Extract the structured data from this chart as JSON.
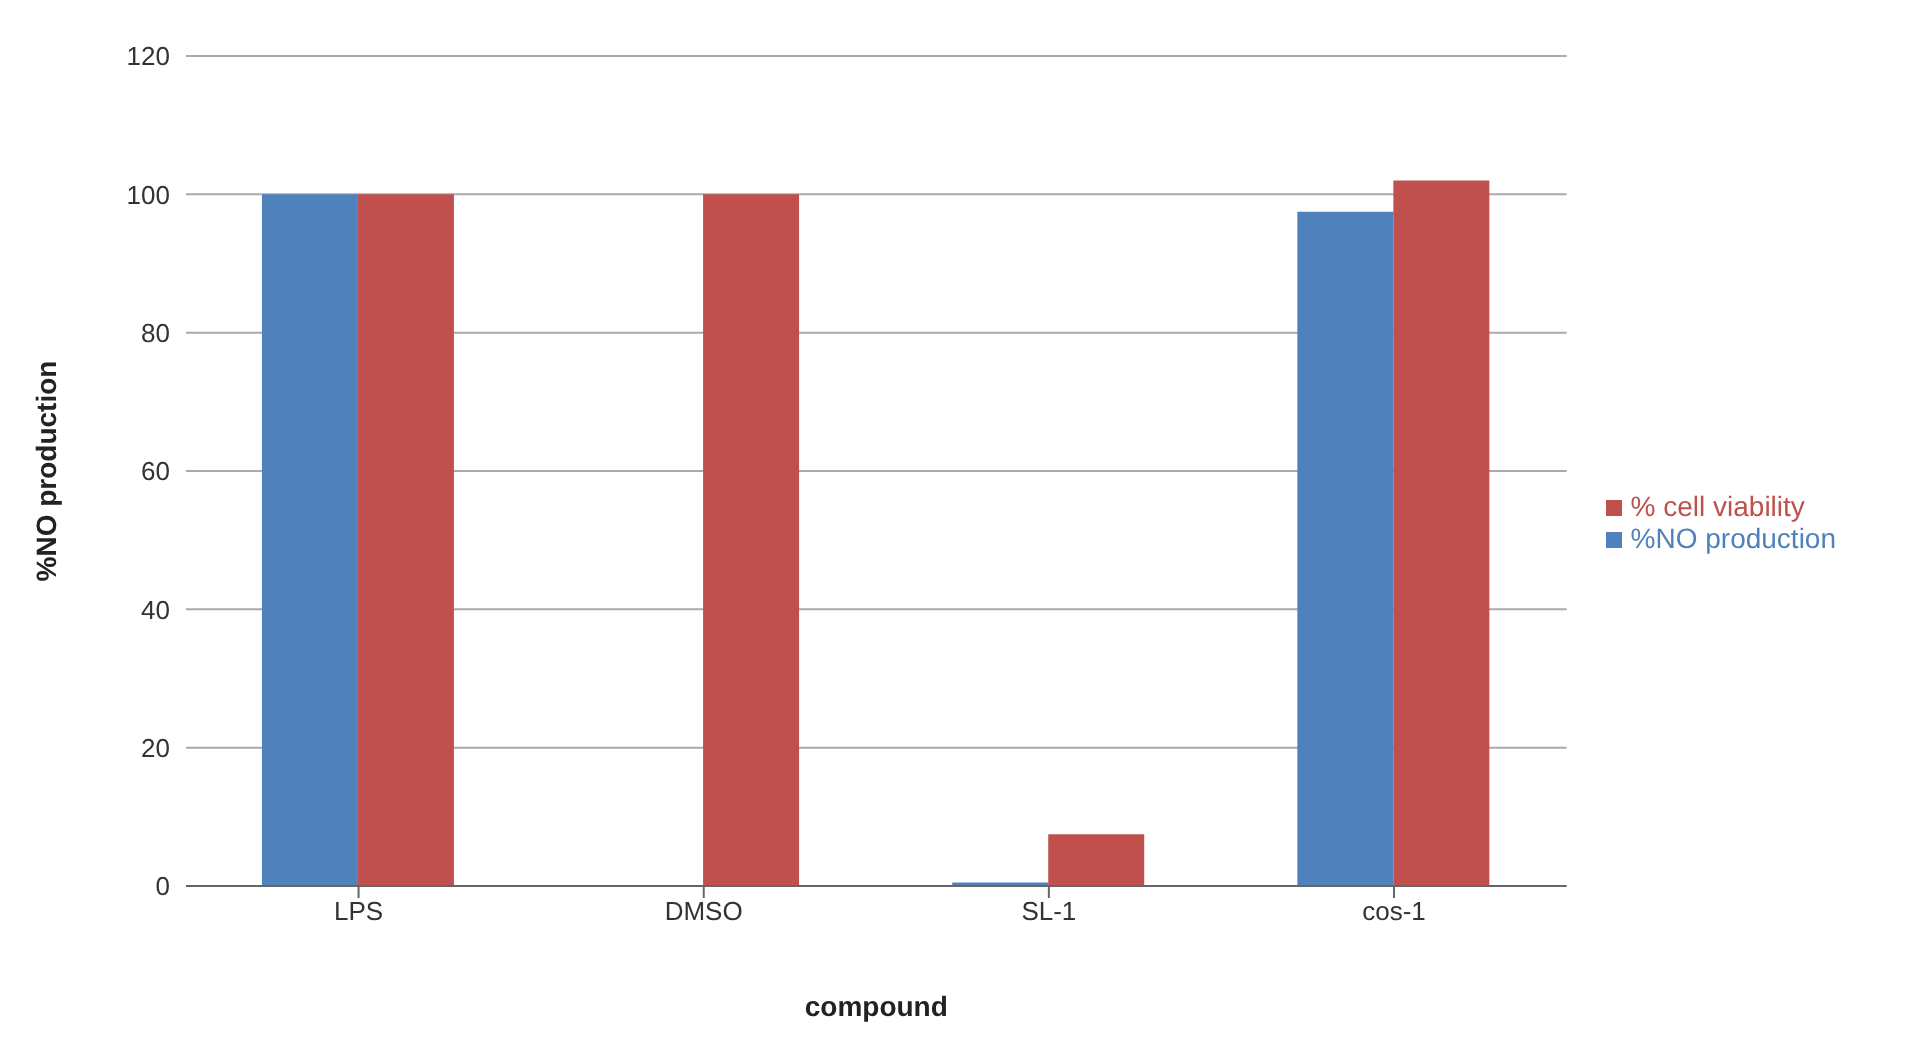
{
  "chart_data": {
    "type": "bar",
    "xlabel": "compound",
    "ylabel": "%NO production",
    "categories": [
      "LPS",
      "DMSO",
      "SL-1",
      "cos-1"
    ],
    "series": [
      {
        "name": "%NO production",
        "color": "#4f81bd",
        "values": [
          100,
          0,
          0.5,
          97.5
        ]
      },
      {
        "name": "% cell viability",
        "color": "#c0504d",
        "values": [
          100,
          100,
          7.5,
          102
        ]
      }
    ],
    "ylim": [
      0,
      120
    ],
    "yticks": [
      0,
      20,
      40,
      60,
      80,
      100,
      120
    ],
    "grid": "y",
    "legend": "right"
  }
}
